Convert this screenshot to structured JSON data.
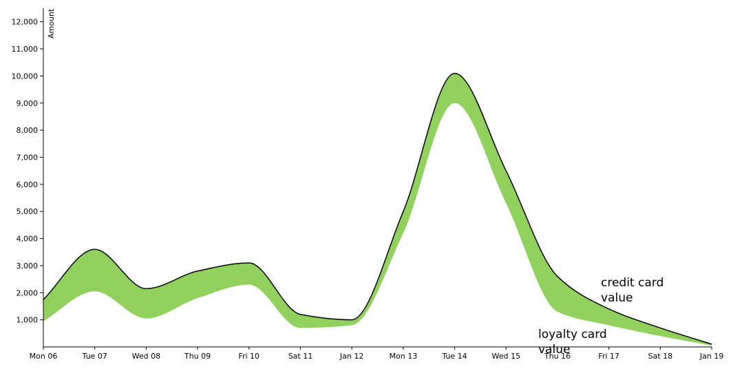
{
  "chart_data": {
    "type": "area",
    "title": "",
    "xlabel": "",
    "ylabel": "Amount",
    "x": [
      "Mon 06",
      "Tue 07",
      "Wed 08",
      "Thu 09",
      "Fri 10",
      "Sat 11",
      "Jan 12",
      "Mon 13",
      "Tue 14",
      "Wed 15",
      "Thu 16",
      "Fri 17",
      "Sat 18",
      "Jan 19"
    ],
    "ylim": [
      0,
      12500
    ],
    "yticks": [
      1000,
      2000,
      3000,
      4000,
      5000,
      6000,
      7000,
      8000,
      9000,
      10000,
      11000,
      12000
    ],
    "ytick_labels": [
      "1,000",
      "2,000",
      "3,000",
      "4,000",
      "5,000",
      "6,000",
      "7,000",
      "8,000",
      "9,000",
      "10,000",
      "11,000",
      "12,000"
    ],
    "series": [
      {
        "name": "credit card value",
        "values": [
          1750,
          3600,
          2150,
          2800,
          3100,
          1200,
          1000,
          5000,
          10100,
          6500,
          2600,
          1400,
          700,
          100
        ]
      },
      {
        "name": "loyalty card value",
        "values": [
          950,
          2050,
          1050,
          1800,
          2300,
          700,
          800,
          4200,
          9000,
          5300,
          1300,
          800,
          400,
          50
        ]
      }
    ],
    "band_color": "#92d15d",
    "line_color": "#000000",
    "grid": false,
    "annotations": [
      {
        "text": [
          "credit card",
          "value"
        ],
        "series": "credit card value",
        "x": "Fri 17"
      },
      {
        "text": [
          "loyalty card",
          "value"
        ],
        "series": "loyalty card value",
        "x": "Wed 15"
      }
    ]
  }
}
